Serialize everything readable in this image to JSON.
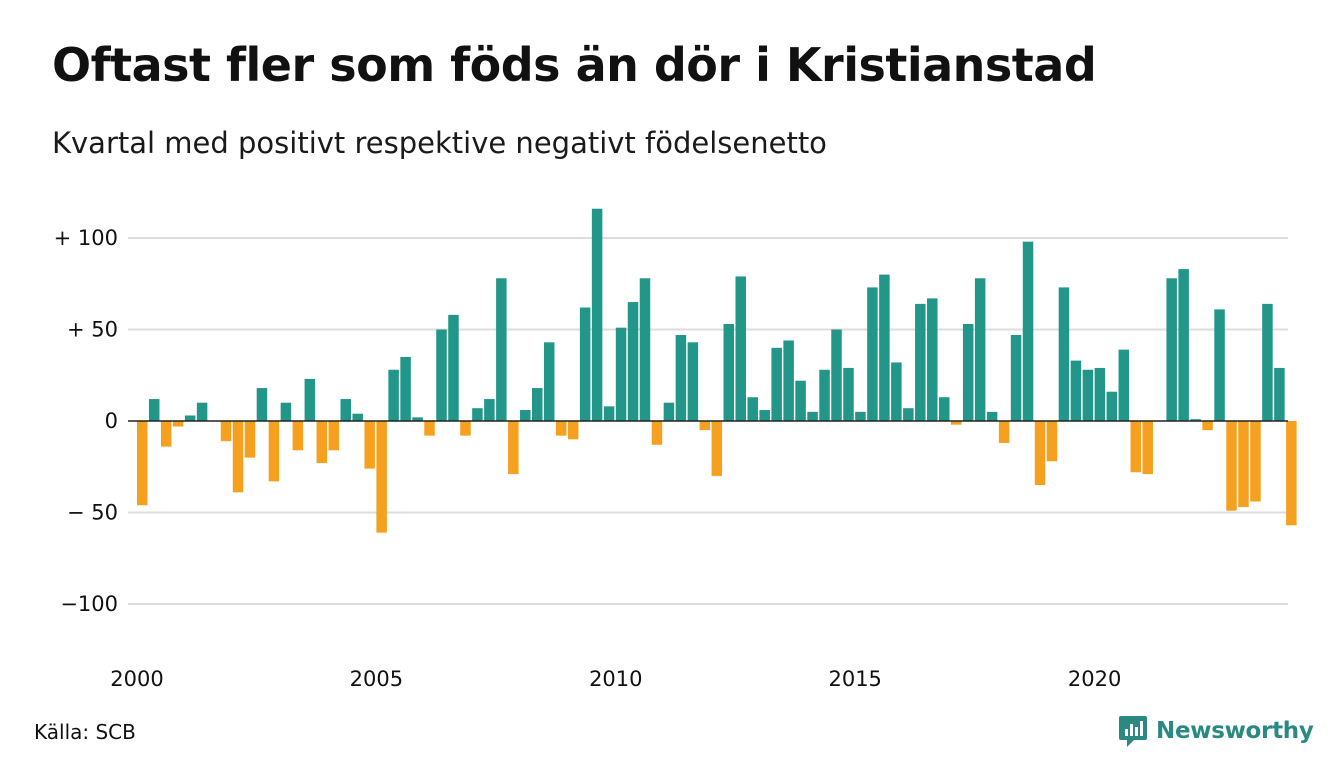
{
  "title": "Oftast fler som föds än dör i Kristianstad",
  "subtitle": "Kvartal med positivt respektive negativt födelsenetto",
  "source": "Källa: SCB",
  "brand": {
    "name": "Newsworthy",
    "icon": "newsworthy-logo-icon"
  },
  "colors": {
    "positive": "#23968a",
    "negative": "#f5a01f",
    "grid": "#dddddd",
    "zero": "#222222"
  },
  "chart_data": {
    "type": "bar",
    "x_start": "2000 Q1",
    "x_ticks": [
      "2000",
      "2005",
      "2010",
      "2015",
      "2020"
    ],
    "y_ticks": [
      {
        "value": 100,
        "label": "+ 100"
      },
      {
        "value": 50,
        "label": "+  50"
      },
      {
        "value": 0,
        "label": "0"
      },
      {
        "value": -50,
        "label": "− 50"
      },
      {
        "value": -100,
        "label": "−100"
      }
    ],
    "ylim": [
      -120,
      118
    ],
    "grid": true,
    "values": [
      -46,
      12,
      -14,
      -3,
      3,
      10,
      0,
      -11,
      -39,
      -20,
      18,
      -33,
      10,
      -16,
      23,
      -23,
      -16,
      12,
      4,
      -26,
      -61,
      28,
      35,
      2,
      -8,
      50,
      58,
      -8,
      7,
      12,
      78,
      -29,
      6,
      18,
      43,
      -8,
      -10,
      62,
      116,
      8,
      51,
      65,
      78,
      -13,
      10,
      47,
      43,
      -5,
      -30,
      53,
      79,
      13,
      6,
      40,
      44,
      22,
      5,
      28,
      50,
      29,
      5,
      73,
      80,
      32,
      7,
      64,
      67,
      13,
      -2,
      53,
      78,
      5,
      -12,
      47,
      98,
      -35,
      -22,
      73,
      33,
      28,
      29,
      16,
      39,
      -28,
      -29,
      0,
      78,
      83,
      1,
      -5,
      61,
      -49,
      -47,
      -44,
      64,
      29,
      -57
    ]
  }
}
